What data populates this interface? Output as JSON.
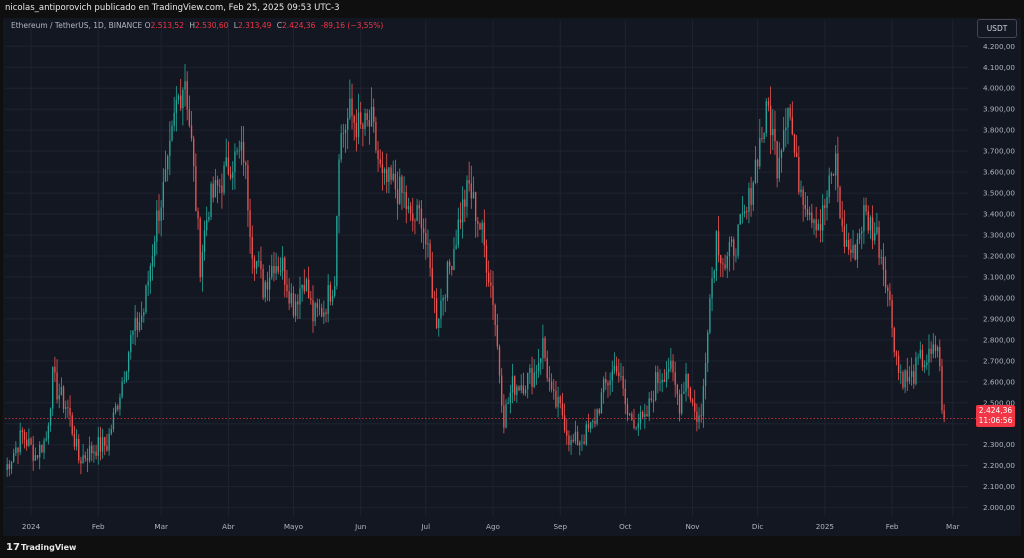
{
  "header": {
    "publisher_line": "nicolas_antiporovich publicado en TradingView.com, Feb 25, 2025 09:53 UTC-3"
  },
  "legend": {
    "symbol": "Ethereum / TetherUS, 1D, BINANCE",
    "o_label": "O",
    "o_value": "2.513,52",
    "h_label": "H",
    "h_value": "2.530,60",
    "l_label": "L",
    "l_value": "2.313,49",
    "c_label": "C",
    "c_value": "2.424,36",
    "change": "-89,16 (−3,55%)"
  },
  "toolbar": {
    "currency_button": "USDT"
  },
  "last_price": {
    "value": "2.424,36",
    "countdown": "11:06:56"
  },
  "footer": {
    "logo_glyph": "17",
    "brand": "TradingView"
  },
  "colors": {
    "up": "#26a69a",
    "down": "#ef5350",
    "background": "#131722",
    "grid": "#1f2331"
  },
  "chart_data": {
    "type": "candlestick",
    "symbol": "Ethereum / TetherUS",
    "interval": "1D",
    "exchange": "BINANCE",
    "ylim": [
      1960,
      4230
    ],
    "x_range": [
      "2023-12-20",
      "2025-03-08"
    ],
    "y_ticks": [
      {
        "value": 2000,
        "label": "2.000,00"
      },
      {
        "value": 2100,
        "label": "2.100,00"
      },
      {
        "value": 2200,
        "label": "2.200,00"
      },
      {
        "value": 2300,
        "label": "2.300,00"
      },
      {
        "value": 2400,
        "label": "2.400,00"
      },
      {
        "value": 2500,
        "label": "2.500,00"
      },
      {
        "value": 2600,
        "label": "2.600,00"
      },
      {
        "value": 2700,
        "label": "2.700,00"
      },
      {
        "value": 2800,
        "label": "2.800,00"
      },
      {
        "value": 2900,
        "label": "2.900,00"
      },
      {
        "value": 3000,
        "label": "3.000,00"
      },
      {
        "value": 3100,
        "label": "3.100,00"
      },
      {
        "value": 3200,
        "label": "3.200,00"
      },
      {
        "value": 3300,
        "label": "3.300,00"
      },
      {
        "value": 3400,
        "label": "3.400,00"
      },
      {
        "value": 3500,
        "label": "3.500,00"
      },
      {
        "value": 3600,
        "label": "3.600,00"
      },
      {
        "value": 3700,
        "label": "3.700,00"
      },
      {
        "value": 3800,
        "label": "3.800,00"
      },
      {
        "value": 3900,
        "label": "3.900,00"
      },
      {
        "value": 4000,
        "label": "4.000,00"
      },
      {
        "value": 4100,
        "label": "4.100,00"
      },
      {
        "value": 4200,
        "label": "4.200,00"
      }
    ],
    "x_ticks": [
      {
        "date": "2024-01-01",
        "label": "2024"
      },
      {
        "date": "2024-02-01",
        "label": "Feb"
      },
      {
        "date": "2024-03-01",
        "label": "Mar"
      },
      {
        "date": "2024-04-01",
        "label": "Abr"
      },
      {
        "date": "2024-05-01",
        "label": "Mayo"
      },
      {
        "date": "2024-06-01",
        "label": "Jun"
      },
      {
        "date": "2024-07-01",
        "label": "Jul"
      },
      {
        "date": "2024-08-01",
        "label": "Ago"
      },
      {
        "date": "2024-09-01",
        "label": "Sep"
      },
      {
        "date": "2024-10-01",
        "label": "Oct"
      },
      {
        "date": "2024-11-01",
        "label": "Nov"
      },
      {
        "date": "2024-12-01",
        "label": "Dic"
      },
      {
        "date": "2025-01-01",
        "label": "2025"
      },
      {
        "date": "2025-02-01",
        "label": "Feb"
      },
      {
        "date": "2025-03-01",
        "label": "Mar"
      }
    ],
    "grid": true,
    "last_price_line": 2424.36,
    "close_path": [
      {
        "date": "2023-12-20",
        "close": 2180
      },
      {
        "date": "2023-12-28",
        "close": 2350
      },
      {
        "date": "2024-01-03",
        "close": 2250
      },
      {
        "date": "2024-01-08",
        "close": 2330
      },
      {
        "date": "2024-01-11",
        "close": 2620
      },
      {
        "date": "2024-01-13",
        "close": 2560
      },
      {
        "date": "2024-01-18",
        "close": 2470
      },
      {
        "date": "2024-01-23",
        "close": 2230
      },
      {
        "date": "2024-01-31",
        "close": 2290
      },
      {
        "date": "2024-02-05",
        "close": 2300
      },
      {
        "date": "2024-02-10",
        "close": 2510
      },
      {
        "date": "2024-02-16",
        "close": 2800
      },
      {
        "date": "2024-02-22",
        "close": 2940
      },
      {
        "date": "2024-02-28",
        "close": 3380
      },
      {
        "date": "2024-03-04",
        "close": 3600
      },
      {
        "date": "2024-03-08",
        "close": 3920
      },
      {
        "date": "2024-03-12",
        "close": 4060
      },
      {
        "date": "2024-03-15",
        "close": 3730
      },
      {
        "date": "2024-03-19",
        "close": 3170
      },
      {
        "date": "2024-03-23",
        "close": 3450
      },
      {
        "date": "2024-03-28",
        "close": 3540
      },
      {
        "date": "2024-04-02",
        "close": 3650
      },
      {
        "date": "2024-04-08",
        "close": 3690
      },
      {
        "date": "2024-04-12",
        "close": 3250
      },
      {
        "date": "2024-04-17",
        "close": 3050
      },
      {
        "date": "2024-04-22",
        "close": 3180
      },
      {
        "date": "2024-04-26",
        "close": 3150
      },
      {
        "date": "2024-05-01",
        "close": 2970
      },
      {
        "date": "2024-05-06",
        "close": 3100
      },
      {
        "date": "2024-05-10",
        "close": 2910
      },
      {
        "date": "2024-05-15",
        "close": 2950
      },
      {
        "date": "2024-05-20",
        "close": 3100
      },
      {
        "date": "2024-05-22",
        "close": 3740
      },
      {
        "date": "2024-05-27",
        "close": 3880
      },
      {
        "date": "2024-06-01",
        "close": 3800
      },
      {
        "date": "2024-06-06",
        "close": 3830
      },
      {
        "date": "2024-06-11",
        "close": 3550
      },
      {
        "date": "2024-06-16",
        "close": 3540
      },
      {
        "date": "2024-06-21",
        "close": 3480
      },
      {
        "date": "2024-06-24",
        "close": 3360
      },
      {
        "date": "2024-06-29",
        "close": 3400
      },
      {
        "date": "2024-07-03",
        "close": 3120
      },
      {
        "date": "2024-07-06",
        "close": 2900
      },
      {
        "date": "2024-07-12",
        "close": 3150
      },
      {
        "date": "2024-07-17",
        "close": 3400
      },
      {
        "date": "2024-07-21",
        "close": 3530
      },
      {
        "date": "2024-07-27",
        "close": 3300
      },
      {
        "date": "2024-08-01",
        "close": 3000
      },
      {
        "date": "2024-08-04",
        "close": 2650
      },
      {
        "date": "2024-08-06",
        "close": 2430
      },
      {
        "date": "2024-08-10",
        "close": 2580
      },
      {
        "date": "2024-08-15",
        "close": 2600
      },
      {
        "date": "2024-08-20",
        "close": 2640
      },
      {
        "date": "2024-08-24",
        "close": 2780
      },
      {
        "date": "2024-08-28",
        "close": 2520
      },
      {
        "date": "2024-09-02",
        "close": 2450
      },
      {
        "date": "2024-09-06",
        "close": 2300
      },
      {
        "date": "2024-09-12",
        "close": 2340
      },
      {
        "date": "2024-09-16",
        "close": 2390
      },
      {
        "date": "2024-09-21",
        "close": 2560
      },
      {
        "date": "2024-09-27",
        "close": 2690
      },
      {
        "date": "2024-10-02",
        "close": 2440
      },
      {
        "date": "2024-10-06",
        "close": 2420
      },
      {
        "date": "2024-10-10",
        "close": 2400
      },
      {
        "date": "2024-10-15",
        "close": 2600
      },
      {
        "date": "2024-10-21",
        "close": 2680
      },
      {
        "date": "2024-10-26",
        "close": 2500
      },
      {
        "date": "2024-10-29",
        "close": 2640
      },
      {
        "date": "2024-11-02",
        "close": 2450
      },
      {
        "date": "2024-11-05",
        "close": 2420
      },
      {
        "date": "2024-11-08",
        "close": 2900
      },
      {
        "date": "2024-11-12",
        "close": 3300
      },
      {
        "date": "2024-11-16",
        "close": 3150
      },
      {
        "date": "2024-11-22",
        "close": 3300
      },
      {
        "date": "2024-11-26",
        "close": 3400
      },
      {
        "date": "2024-12-01",
        "close": 3700
      },
      {
        "date": "2024-12-06",
        "close": 3900
      },
      {
        "date": "2024-12-10",
        "close": 3650
      },
      {
        "date": "2024-12-15",
        "close": 3950
      },
      {
        "date": "2024-12-19",
        "close": 3600
      },
      {
        "date": "2024-12-24",
        "close": 3450
      },
      {
        "date": "2024-12-30",
        "close": 3350
      },
      {
        "date": "2025-01-06",
        "close": 3650
      },
      {
        "date": "2025-01-09",
        "close": 3300
      },
      {
        "date": "2025-01-14",
        "close": 3200
      },
      {
        "date": "2025-01-19",
        "close": 3400
      },
      {
        "date": "2025-01-25",
        "close": 3300
      },
      {
        "date": "2025-01-29",
        "close": 3120
      },
      {
        "date": "2025-02-02",
        "close": 2800
      },
      {
        "date": "2025-02-04",
        "close": 2650
      },
      {
        "date": "2025-02-09",
        "close": 2600
      },
      {
        "date": "2025-02-14",
        "close": 2700
      },
      {
        "date": "2025-02-19",
        "close": 2710
      },
      {
        "date": "2025-02-22",
        "close": 2780
      },
      {
        "date": "2025-02-24",
        "close": 2500
      },
      {
        "date": "2025-02-25",
        "close": 2424.36
      }
    ]
  }
}
